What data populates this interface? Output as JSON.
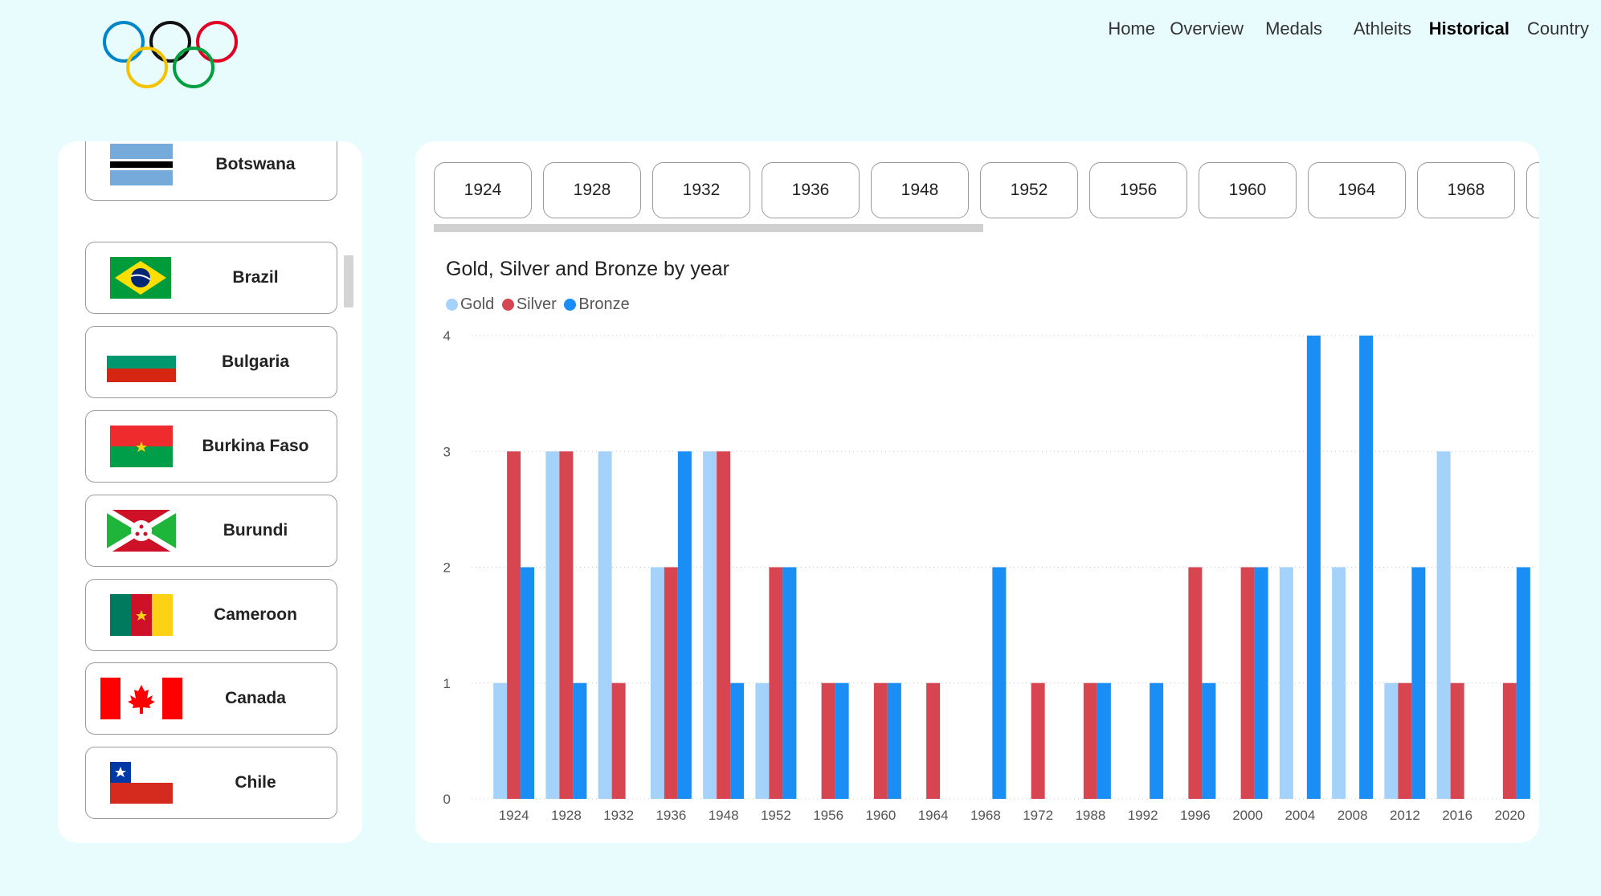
{
  "nav": {
    "items": [
      "Home",
      "Overview",
      "Medals",
      "Athleits",
      "Historical",
      "Country"
    ],
    "active": "Historical"
  },
  "countries": [
    {
      "name": "Botswana",
      "flag": "botswana"
    },
    {
      "name": "Brazil",
      "flag": "brazil"
    },
    {
      "name": "Bulgaria",
      "flag": "bulgaria"
    },
    {
      "name": "Burkina Faso",
      "flag": "burkina-faso"
    },
    {
      "name": "Burundi",
      "flag": "burundi"
    },
    {
      "name": "Cameroon",
      "flag": "cameroon"
    },
    {
      "name": "Canada",
      "flag": "canada"
    },
    {
      "name": "Chile",
      "flag": "chile"
    }
  ],
  "year_buttons": [
    "1924",
    "1928",
    "1932",
    "1936",
    "1948",
    "1952",
    "1956",
    "1960",
    "1964",
    "1968"
  ],
  "colors": {
    "gold": "#a5d2fa",
    "silver": "#d64550",
    "bronze": "#1a8ef5",
    "background": "#e8fbfd"
  },
  "chart_data": {
    "type": "bar",
    "title": "Gold, Silver and Bronze by year",
    "xlabel": "",
    "ylabel": "",
    "ylim": [
      0,
      4
    ],
    "yticks": [
      "0",
      "1",
      "2",
      "3",
      "4"
    ],
    "legend": "top-left",
    "categories": [
      "1924",
      "1928",
      "1932",
      "1936",
      "1948",
      "1952",
      "1956",
      "1960",
      "1964",
      "1968",
      "1972",
      "1988",
      "1992",
      "1996",
      "2000",
      "2004",
      "2008",
      "2012",
      "2016",
      "2020"
    ],
    "series": [
      {
        "name": "Gold",
        "values": [
          1,
          3,
          3,
          2,
          3,
          1,
          0,
          0,
          0,
          0,
          0,
          0,
          0,
          0,
          0,
          2,
          2,
          1,
          3,
          0
        ]
      },
      {
        "name": "Silver",
        "values": [
          3,
          3,
          1,
          2,
          3,
          2,
          1,
          1,
          1,
          0,
          1,
          1,
          0,
          2,
          2,
          0,
          0,
          1,
          1,
          1
        ]
      },
      {
        "name": "Bronze",
        "values": [
          2,
          1,
          0,
          3,
          1,
          2,
          1,
          1,
          0,
          2,
          0,
          1,
          1,
          1,
          2,
          4,
          4,
          2,
          0,
          2
        ]
      }
    ]
  }
}
